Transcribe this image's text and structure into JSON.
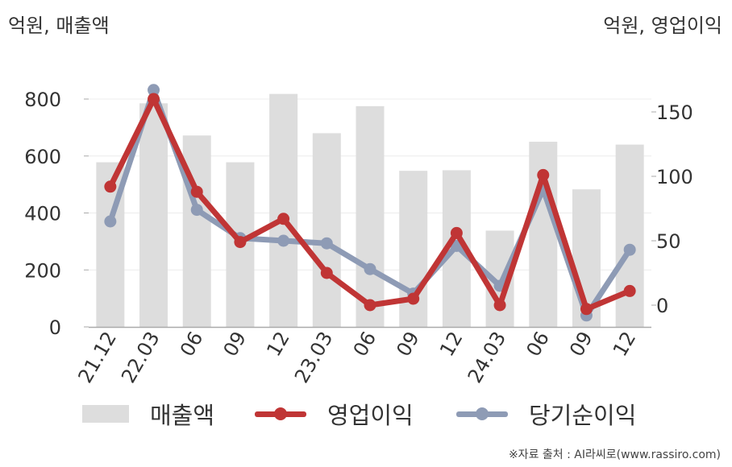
{
  "header": {
    "unit_left": "억원, 매출액",
    "unit_right": "억원, 영업이익"
  },
  "chart_data": {
    "type": "bar",
    "categories": [
      "21.12",
      "22.03",
      "06",
      "09",
      "12",
      "23.03",
      "06",
      "09",
      "12",
      "24.03",
      "06",
      "09",
      "12"
    ],
    "series": [
      {
        "name": "매출액",
        "type": "bar",
        "axis": "left",
        "color": "#dddddd",
        "values": [
          578,
          785,
          672,
          578,
          818,
          680,
          775,
          548,
          550,
          338,
          650,
          483,
          640
        ]
      },
      {
        "name": "영업이익",
        "type": "line",
        "axis": "right",
        "color": "#c03535",
        "values": [
          92,
          160,
          88,
          49,
          67,
          25,
          0,
          5,
          56,
          0,
          101,
          -3,
          11
        ]
      },
      {
        "name": "당기순이익",
        "type": "line",
        "axis": "right",
        "color": "#8e9bb5",
        "values": [
          65,
          167,
          74,
          52,
          50,
          48,
          28,
          9,
          46,
          15,
          90,
          -8,
          43
        ]
      }
    ],
    "y_left": {
      "ticks": [
        0,
        200,
        400,
        600,
        800
      ],
      "range": [
        0,
        900
      ]
    },
    "y_right": {
      "ticks": [
        0,
        50,
        100,
        150
      ],
      "range": [
        -9,
        168
      ]
    },
    "grid": true,
    "legend_position": "bottom"
  },
  "legend": {
    "items": [
      "매출액",
      "영업이익",
      "당기순이익"
    ]
  },
  "footer": {
    "source": "※자료 출처 : AI라씨로(www.rassiro.com)"
  }
}
